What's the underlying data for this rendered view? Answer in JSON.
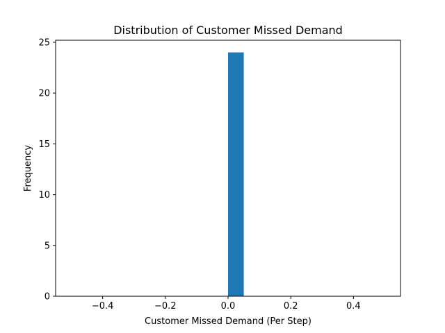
{
  "chart_data": {
    "type": "bar",
    "title": "Distribution of Customer Missed Demand",
    "xlabel": "Customer Missed Demand (Per Step)",
    "ylabel": "Frequency",
    "xlim": [
      -0.55,
      0.55
    ],
    "ylim": [
      0,
      25.2
    ],
    "xticks": [
      {
        "value": -0.4,
        "label": "−0.4"
      },
      {
        "value": -0.2,
        "label": "−0.2"
      },
      {
        "value": 0.0,
        "label": "0.0"
      },
      {
        "value": 0.2,
        "label": "0.2"
      },
      {
        "value": 0.4,
        "label": "0.4"
      }
    ],
    "yticks": [
      {
        "value": 0,
        "label": "0"
      },
      {
        "value": 5,
        "label": "5"
      },
      {
        "value": 10,
        "label": "10"
      },
      {
        "value": 15,
        "label": "15"
      },
      {
        "value": 20,
        "label": "20"
      },
      {
        "value": 25,
        "label": "25"
      }
    ],
    "bins": [
      {
        "x0": 0.0,
        "x1": 0.05,
        "count": 24
      }
    ],
    "bar_color": "#1f77b4",
    "grid": false
  }
}
